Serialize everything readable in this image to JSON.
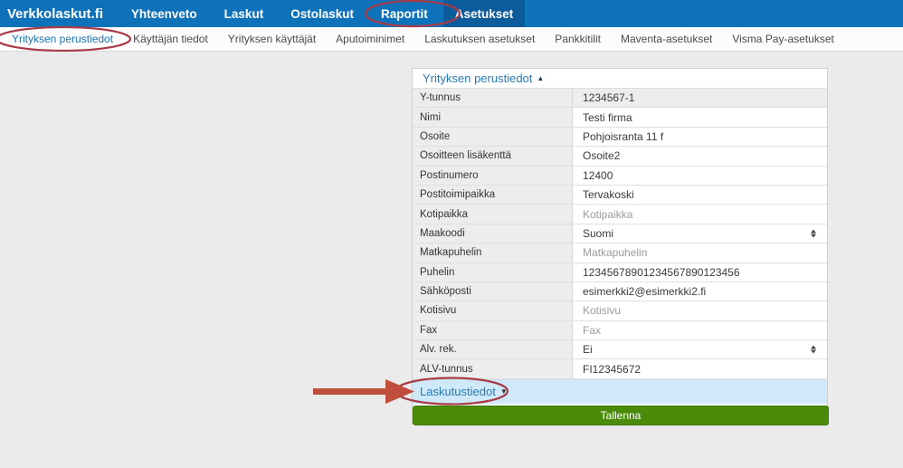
{
  "nav": {
    "brand": "Verkkolaskut.fi",
    "items": [
      {
        "label": "Yhteenveto",
        "active": false
      },
      {
        "label": "Laskut",
        "active": false
      },
      {
        "label": "Ostolaskut",
        "active": false
      },
      {
        "label": "Raportit",
        "active": false
      },
      {
        "label": "Asetukset",
        "active": true
      }
    ]
  },
  "subnav": {
    "items": [
      {
        "label": "Yrityksen perustiedot",
        "active": true
      },
      {
        "label": "Käyttäjän tiedot",
        "active": false
      },
      {
        "label": "Yrityksen käyttäjät",
        "active": false
      },
      {
        "label": "Aputoiminimet",
        "active": false
      },
      {
        "label": "Laskutuksen asetukset",
        "active": false
      },
      {
        "label": "Pankkitilit",
        "active": false
      },
      {
        "label": "Maventa-asetukset",
        "active": false
      },
      {
        "label": "Visma Pay-asetukset",
        "active": false
      }
    ]
  },
  "panel": {
    "title": "Yrityksen perustiedot",
    "collapse_icon": "collapse-up",
    "rows": [
      {
        "label": "Y-tunnus",
        "value": "1234567-1",
        "type": "readonly"
      },
      {
        "label": "Nimi",
        "value": "Testi firma",
        "type": "text"
      },
      {
        "label": "Osoite",
        "value": "Pohjoisranta 11 f",
        "type": "text"
      },
      {
        "label": "Osoitteen lisäkenttä",
        "value": "Osoite2",
        "type": "text"
      },
      {
        "label": "Postinumero",
        "value": "12400",
        "type": "text"
      },
      {
        "label": "Postitoimipaikka",
        "value": "Tervakoski",
        "type": "text"
      },
      {
        "label": "Kotipaikka",
        "value": "Kotipaikka",
        "type": "placeholder"
      },
      {
        "label": "Maakoodi",
        "value": "Suomi",
        "type": "select"
      },
      {
        "label": "Matkapuhelin",
        "value": "Matkapuhelin",
        "type": "placeholder"
      },
      {
        "label": "Puhelin",
        "value": "12345678901234567890123456",
        "type": "text"
      },
      {
        "label": "Sähköposti",
        "value": "esimerkki2@esimerkki2.fi",
        "type": "text"
      },
      {
        "label": "Kotisivu",
        "value": "Kotisivu",
        "type": "placeholder"
      },
      {
        "label": "Fax",
        "value": "Fax",
        "type": "placeholder"
      },
      {
        "label": "Alv. rek.",
        "value": "Ei",
        "type": "select"
      },
      {
        "label": "ALV-tunnus",
        "value": "FI12345672",
        "type": "text"
      }
    ],
    "collapsed_section": {
      "label": "Laskutustiedot",
      "icon": "collapse-down"
    },
    "save_label": "Tallenna"
  },
  "colors": {
    "nav_blue": "#0e72bb",
    "nav_active_blue": "#0c5b9b",
    "link_blue": "#2b7ab3",
    "section_bar_blue": "#cfe9f8",
    "save_green": "#4a8c0a",
    "annotation_red": "#a93b47",
    "arrow_red": "#bf4f3c"
  }
}
